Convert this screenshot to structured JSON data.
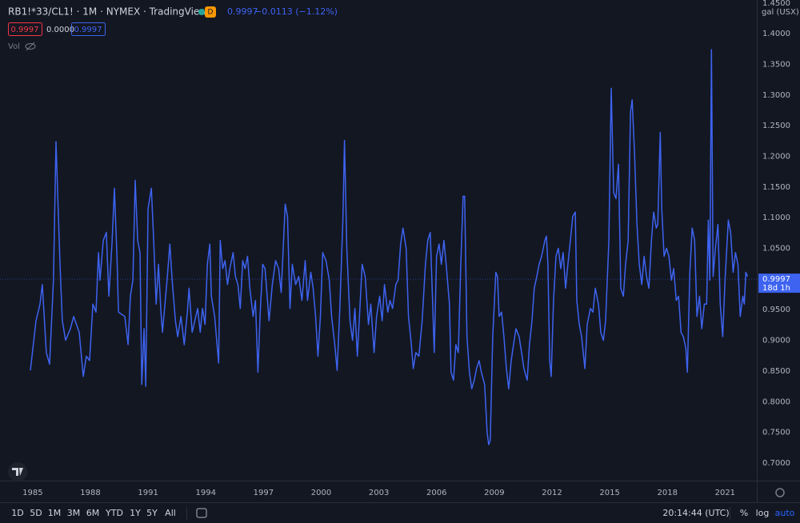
{
  "header": {
    "title": "RB1!*33/CL1! · 1M · NYMEX · TradingView",
    "badge": "D",
    "last": "0.9997",
    "change": "−0.0113 (−1.12%)",
    "ohlc": [
      "0.9997",
      "0.0000",
      "0.9997"
    ],
    "volume": "Vol"
  },
  "chart_data": {
    "type": "line",
    "color": "#3d63f0",
    "grid": false,
    "unit": "gal (USX)",
    "last_value": 0.9997,
    "countdown": "18d 1h",
    "xlim": [
      1983.3,
      2022.65
    ],
    "ylim": [
      0.6713,
      1.4549
    ],
    "xticks": [
      1985,
      1988,
      1991,
      1994,
      1997,
      2000,
      2003,
      2006,
      2009,
      2012,
      2015,
      2018,
      2021
    ],
    "yticks": [
      {
        "value": 0.7,
        "label": "0.7000"
      },
      {
        "value": 0.75,
        "label": "0.7500"
      },
      {
        "value": 0.8,
        "label": "0.8000"
      },
      {
        "value": 0.85,
        "label": "0.8500"
      },
      {
        "value": 0.9,
        "label": "0.9000"
      },
      {
        "value": 0.95,
        "label": "0.9500"
      },
      {
        "value": 1.0,
        "label": "1.0000"
      },
      {
        "value": 1.05,
        "label": "1.0500"
      },
      {
        "value": 1.1,
        "label": "1.1000"
      },
      {
        "value": 1.15,
        "label": "1.1500"
      },
      {
        "value": 1.2,
        "label": "1.2000"
      },
      {
        "value": 1.25,
        "label": "1.2500"
      },
      {
        "value": 1.3,
        "label": "1.3000"
      },
      {
        "value": 1.35,
        "label": "1.3500"
      },
      {
        "value": 1.4,
        "label": "1.4000"
      },
      {
        "value": 1.45,
        "label": "1.4500"
      }
    ],
    "x": [
      1984.88,
      1985.17,
      1985.38,
      1985.5,
      1985.71,
      1985.88,
      1986.08,
      1986.21,
      1986.42,
      1986.54,
      1986.71,
      1986.96,
      1987.13,
      1987.42,
      1987.63,
      1987.79,
      1987.96,
      1988.13,
      1988.29,
      1988.42,
      1988.5,
      1988.67,
      1988.83,
      1988.96,
      1989.13,
      1989.25,
      1989.38,
      1989.46,
      1989.79,
      1989.96,
      1990.08,
      1990.21,
      1990.33,
      1990.46,
      1990.58,
      1990.67,
      1990.79,
      1990.88,
      1991.0,
      1991.17,
      1991.29,
      1991.42,
      1991.54,
      1991.67,
      1991.75,
      1992.0,
      1992.13,
      1992.25,
      1992.42,
      1992.54,
      1992.71,
      1992.88,
      1993.04,
      1993.13,
      1993.29,
      1993.58,
      1993.71,
      1993.83,
      1993.96,
      1994.08,
      1994.21,
      1994.29,
      1994.46,
      1994.67,
      1994.75,
      1994.88,
      1995.0,
      1995.13,
      1995.25,
      1995.42,
      1995.54,
      1995.67,
      1995.79,
      1995.92,
      1996.04,
      1996.17,
      1996.29,
      1996.46,
      1996.58,
      1996.71,
      1996.83,
      1996.96,
      1997.08,
      1997.29,
      1997.46,
      1997.63,
      1997.79,
      1997.92,
      1998.13,
      1998.25,
      1998.38,
      1998.5,
      1998.67,
      1998.83,
      1999.0,
      1999.17,
      1999.29,
      1999.46,
      1999.58,
      1999.71,
      1999.83,
      1999.96,
      2000.08,
      2000.25,
      2000.42,
      2000.54,
      2000.71,
      2000.83,
      2000.96,
      2001.13,
      2001.21,
      2001.33,
      2001.5,
      2001.63,
      2001.75,
      2001.88,
      2002.0,
      2002.13,
      2002.29,
      2002.46,
      2002.58,
      2002.75,
      2002.88,
      2003.04,
      2003.17,
      2003.29,
      2003.46,
      2003.58,
      2003.71,
      2003.88,
      2004.0,
      2004.13,
      2004.25,
      2004.42,
      2004.54,
      2004.67,
      2004.79,
      2004.92,
      2005.08,
      2005.25,
      2005.42,
      2005.54,
      2005.67,
      2005.79,
      2005.88,
      2006.0,
      2006.13,
      2006.25,
      2006.38,
      2006.5,
      2006.67,
      2006.75,
      2006.88,
      2007.0,
      2007.13,
      2007.25,
      2007.38,
      2007.46,
      2007.58,
      2007.71,
      2007.83,
      2007.96,
      2008.08,
      2008.21,
      2008.33,
      2008.5,
      2008.63,
      2008.71,
      2008.79,
      2008.92,
      2009.08,
      2009.17,
      2009.25,
      2009.38,
      2009.5,
      2009.63,
      2009.75,
      2009.88,
      2010.0,
      2010.13,
      2010.29,
      2010.42,
      2010.54,
      2010.71,
      2010.83,
      2010.96,
      2011.08,
      2011.21,
      2011.33,
      2011.46,
      2011.63,
      2011.71,
      2011.79,
      2011.88,
      2011.96,
      2012.08,
      2012.21,
      2012.33,
      2012.46,
      2012.58,
      2012.71,
      2012.83,
      2012.96,
      2013.08,
      2013.21,
      2013.29,
      2013.42,
      2013.54,
      2013.71,
      2013.83,
      2014.0,
      2014.13,
      2014.25,
      2014.42,
      2014.54,
      2014.67,
      2014.79,
      2014.96,
      2015.08,
      2015.21,
      2015.33,
      2015.46,
      2015.58,
      2015.71,
      2015.83,
      2015.96,
      2016.08,
      2016.17,
      2016.29,
      2016.42,
      2016.54,
      2016.67,
      2016.79,
      2016.92,
      2017.04,
      2017.17,
      2017.29,
      2017.42,
      2017.5,
      2017.63,
      2017.71,
      2017.83,
      2017.96,
      2018.08,
      2018.21,
      2018.33,
      2018.46,
      2018.58,
      2018.71,
      2018.83,
      2018.96,
      2019.04,
      2019.17,
      2019.29,
      2019.42,
      2019.54,
      2019.67,
      2019.79,
      2019.92,
      2020.04,
      2020.13,
      2020.21,
      2020.29,
      2020.38,
      2020.5,
      2020.63,
      2020.75,
      2020.88,
      2021.0,
      2021.17,
      2021.29,
      2021.42,
      2021.54,
      2021.67,
      2021.79,
      2021.92,
      2022.0,
      2022.08,
      2022.17
    ],
    "values": [
      0.851,
      0.932,
      0.959,
      0.991,
      0.88,
      0.861,
      0.998,
      1.224,
      1.024,
      0.932,
      0.9,
      0.919,
      0.939,
      0.913,
      0.841,
      0.874,
      0.867,
      0.959,
      0.946,
      1.043,
      0.998,
      1.063,
      1.076,
      0.972,
      1.063,
      1.148,
      1.037,
      0.946,
      0.939,
      0.893,
      0.972,
      0.998,
      1.161,
      1.063,
      1.043,
      0.828,
      0.919,
      0.825,
      1.115,
      1.148,
      1.063,
      0.959,
      1.024,
      0.946,
      0.913,
      1.004,
      1.057,
      0.998,
      0.932,
      0.906,
      0.939,
      0.893,
      0.946,
      0.985,
      0.913,
      0.952,
      0.913,
      0.952,
      0.926,
      1.024,
      1.057,
      0.972,
      0.939,
      0.863,
      1.063,
      1.017,
      1.03,
      0.991,
      1.017,
      1.043,
      1.004,
      0.991,
      0.952,
      1.03,
      1.017,
      1.037,
      0.985,
      0.939,
      0.965,
      0.848,
      0.946,
      1.024,
      1.017,
      0.932,
      0.991,
      1.03,
      1.017,
      0.978,
      1.122,
      1.102,
      0.952,
      1.024,
      0.991,
      1.004,
      0.965,
      1.03,
      0.965,
      1.011,
      0.985,
      0.939,
      0.874,
      0.939,
      1.043,
      1.03,
      0.998,
      0.939,
      0.893,
      0.851,
      0.946,
      1.096,
      1.226,
      1.05,
      0.932,
      0.9,
      0.952,
      0.874,
      0.946,
      1.024,
      1.004,
      0.926,
      0.959,
      0.88,
      0.939,
      0.972,
      0.932,
      0.991,
      0.946,
      0.965,
      0.952,
      0.991,
      0.998,
      1.057,
      1.083,
      1.05,
      0.939,
      0.9,
      0.854,
      0.88,
      0.874,
      0.932,
      1.024,
      1.063,
      1.076,
      0.965,
      0.88,
      1.037,
      1.057,
      1.024,
      1.063,
      1.024,
      0.959,
      0.848,
      0.835,
      0.893,
      0.88,
      1.017,
      1.135,
      1.135,
      0.906,
      0.848,
      0.821,
      0.835,
      0.854,
      0.867,
      0.848,
      0.828,
      0.75,
      0.73,
      0.737,
      0.906,
      1.011,
      1.004,
      0.939,
      0.946,
      0.906,
      0.854,
      0.821,
      0.867,
      0.893,
      0.919,
      0.906,
      0.88,
      0.854,
      0.835,
      0.893,
      0.932,
      0.985,
      1.004,
      1.024,
      1.037,
      1.063,
      1.07,
      1.024,
      0.867,
      0.841,
      0.965,
      1.037,
      1.05,
      1.017,
      1.043,
      0.985,
      1.024,
      1.063,
      1.102,
      1.109,
      0.965,
      0.926,
      0.906,
      0.854,
      0.926,
      0.952,
      0.946,
      0.985,
      0.959,
      0.913,
      0.9,
      0.932,
      1.063,
      1.311,
      1.141,
      1.131,
      1.187,
      0.985,
      0.972,
      1.024,
      1.063,
      1.272,
      1.292,
      1.207,
      1.089,
      1.024,
      0.991,
      1.037,
      1.004,
      0.985,
      1.063,
      1.109,
      1.083,
      1.089,
      1.239,
      1.115,
      1.037,
      1.05,
      1.037,
      0.998,
      1.017,
      0.965,
      0.972,
      0.913,
      0.906,
      0.887,
      0.848,
      1.011,
      1.083,
      1.063,
      0.939,
      0.972,
      0.919,
      0.959,
      0.959,
      1.096,
      0.998,
      1.374,
      1.004,
      1.05,
      1.089,
      0.959,
      0.906,
      0.998,
      1.096,
      1.076,
      1.011,
      1.043,
      1.024,
      0.939,
      0.972,
      0.959,
      1.011,
      1.004
    ]
  },
  "toolbar": {
    "ranges": [
      "1D",
      "5D",
      "1M",
      "3M",
      "6M",
      "YTD",
      "1Y",
      "5Y",
      "All"
    ],
    "time": "20:14:44 (UTC)",
    "options": [
      "%",
      "log",
      "auto"
    ]
  }
}
